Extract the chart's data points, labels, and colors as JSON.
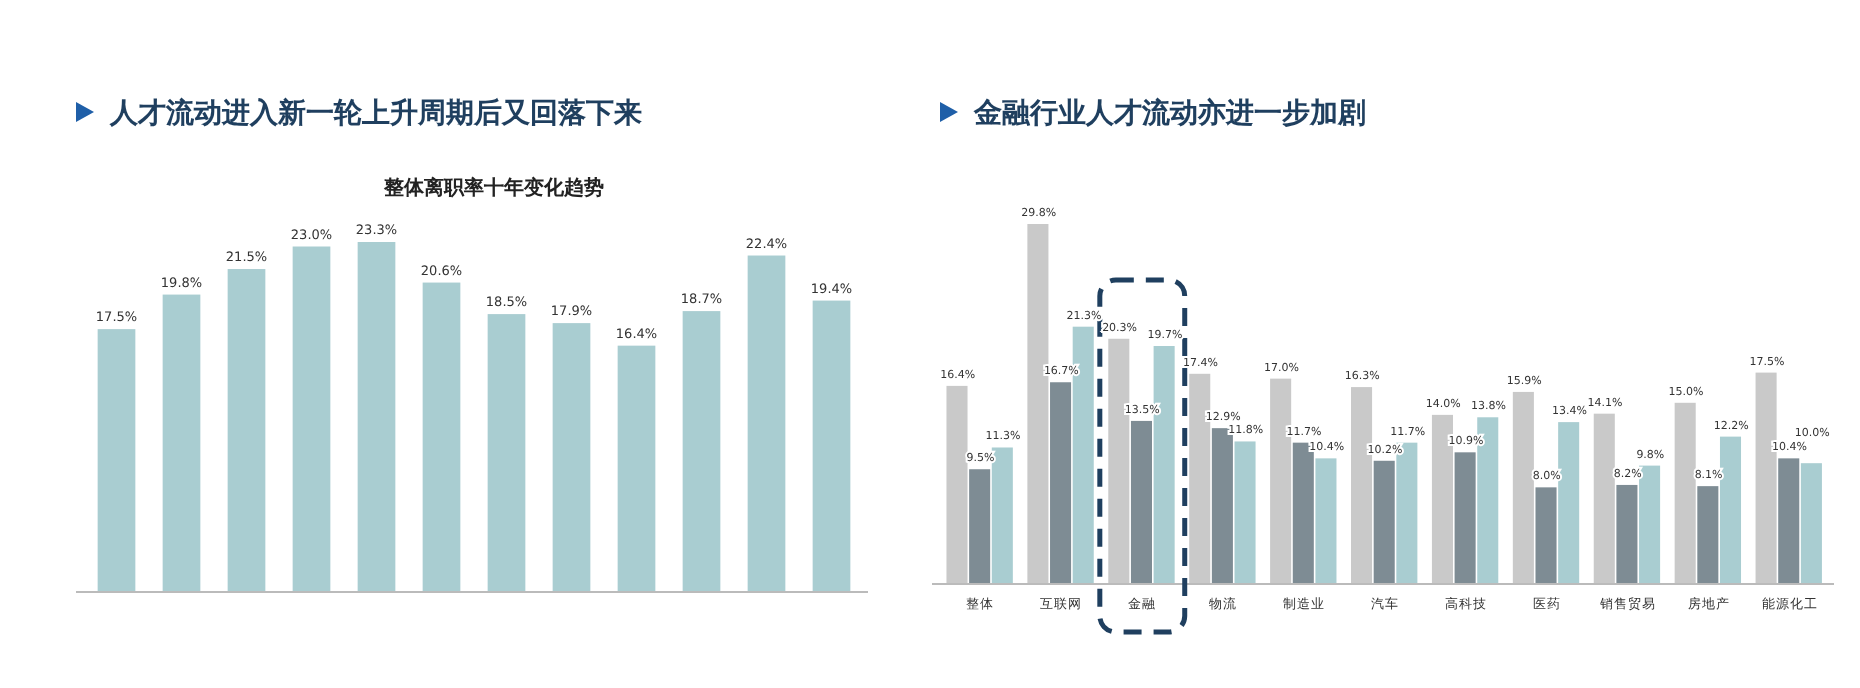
{
  "chart_data": [
    {
      "type": "bar",
      "title": "人才流动进入新一轮上升周期后又回落下来",
      "subtitle": "整体离职率十年变化趋势",
      "categories": [
        null,
        null,
        null,
        null,
        null,
        null,
        null,
        null,
        null,
        null,
        null,
        null
      ],
      "values": [
        17.5,
        19.8,
        21.5,
        23.0,
        23.3,
        20.6,
        18.5,
        17.9,
        16.4,
        18.7,
        22.4,
        19.4
      ],
      "value_labels": [
        "17.5%",
        "19.8%",
        "21.5%",
        "23.0%",
        "23.3%",
        "20.6%",
        "18.5%",
        "17.9%",
        "16.4%",
        "18.7%",
        "22.4%",
        "19.4%"
      ],
      "color": "#a9cdd1"
    },
    {
      "type": "bar",
      "title": "金融行业人才流动亦进一步加剧",
      "categories": [
        "整体",
        "互联网",
        "金融",
        "物流",
        "制造业",
        "汽车",
        "高科技",
        "医药",
        "销售贸易",
        "房地产",
        "能源化工"
      ],
      "series": [
        {
          "color": "#c9c9c9",
          "values": [
            16.4,
            29.8,
            20.3,
            17.4,
            17.0,
            16.3,
            14.0,
            15.9,
            14.1,
            15.0,
            17.5
          ],
          "value_labels": [
            "16.4%",
            "29.8%",
            "20.3%",
            "17.4%",
            "17.0%",
            "16.3%",
            "14.0%",
            "15.9%",
            "14.1%",
            "15.0%",
            "17.5%"
          ]
        },
        {
          "color": "#7e8c94",
          "values": [
            9.5,
            16.7,
            13.5,
            12.9,
            11.7,
            10.2,
            10.9,
            8.0,
            8.2,
            8.1,
            10.4
          ],
          "value_labels": [
            "9.5%",
            "16.7%",
            "13.5%",
            "12.9%",
            "11.7%",
            "10.2%",
            "10.9%",
            "8.0%",
            "8.2%",
            "8.1%",
            "10.4%"
          ]
        },
        {
          "color": "#a9cdd1",
          "values": [
            11.3,
            21.3,
            19.7,
            11.8,
            10.4,
            11.7,
            13.8,
            13.4,
            9.8,
            12.2,
            10.0
          ],
          "value_labels": [
            "11.3%",
            "21.3%",
            "19.7%",
            "11.8%",
            "10.4%",
            "11.7%",
            "13.8%",
            "13.4%",
            "9.8%",
            "12.2%",
            "10.0%"
          ]
        }
      ]
    }
  ]
}
